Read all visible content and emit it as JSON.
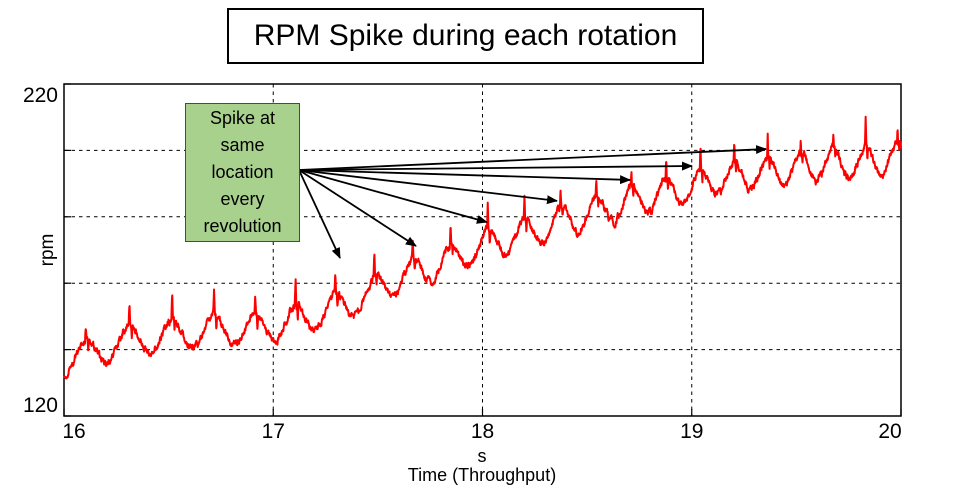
{
  "title": {
    "text": "RPM Spike during each rotation"
  },
  "annotation": {
    "text": "Spike at\nsame\nlocation\nevery\nrevolution",
    "fill": "#a9d18e",
    "border": "#44512f"
  },
  "axes": {
    "y_top_label": "220",
    "y_bottom_label": "120",
    "y_axis_label": "rpm",
    "x_unit_label": "s",
    "x_axis_label": "Time (Throughput)"
  },
  "chart_data": {
    "type": "line",
    "title": "RPM Spike during each rotation",
    "xlabel": "Time (Throughput)",
    "x_unit": "s",
    "ylabel": "rpm",
    "xlim": [
      16,
      20
    ],
    "ylim": [
      120,
      220
    ],
    "x_ticks": [
      16,
      17,
      18,
      19,
      20
    ],
    "y_ticks": [
      120,
      140,
      160,
      180,
      200,
      220
    ],
    "x_gridlines": [
      17,
      18,
      19
    ],
    "y_gridlines": [
      140,
      160,
      180,
      200
    ],
    "grid_style": "dashed",
    "line_color": "#ff0000",
    "axis_color": "#000000",
    "series": [
      {
        "name": "rpm",
        "description": "Rising rpm trace with one oscillation per rotation and a sharp spike at the same location every revolution",
        "trend_anchors": [
          [
            16,
            136
          ],
          [
            16.3,
            143
          ],
          [
            16.6,
            145
          ],
          [
            17,
            147
          ],
          [
            17.3,
            152
          ],
          [
            17.6,
            161
          ],
          [
            18,
            171
          ],
          [
            18.4,
            179
          ],
          [
            18.8,
            186
          ],
          [
            19.2,
            192
          ],
          [
            19.6,
            195.5
          ],
          [
            20,
            197.5
          ]
        ],
        "oscillation_amplitude_rpm": 4.5,
        "rotation_freq_hz": [
          4.7,
          6.6
        ],
        "spike_height_rpm": [
          5,
          8.5
        ],
        "noise_rpm": 1.0
      }
    ],
    "callout_arrows": {
      "source": [
        17.123,
        194.1
      ],
      "tips": [
        [
          17.319,
          167.6
        ],
        [
          17.682,
          171.2
        ],
        [
          18.021,
          178.4
        ],
        [
          18.356,
          184.8
        ],
        [
          18.705,
          191.1
        ],
        [
          19.001,
          195.3
        ],
        [
          19.355,
          200.4
        ]
      ]
    }
  }
}
